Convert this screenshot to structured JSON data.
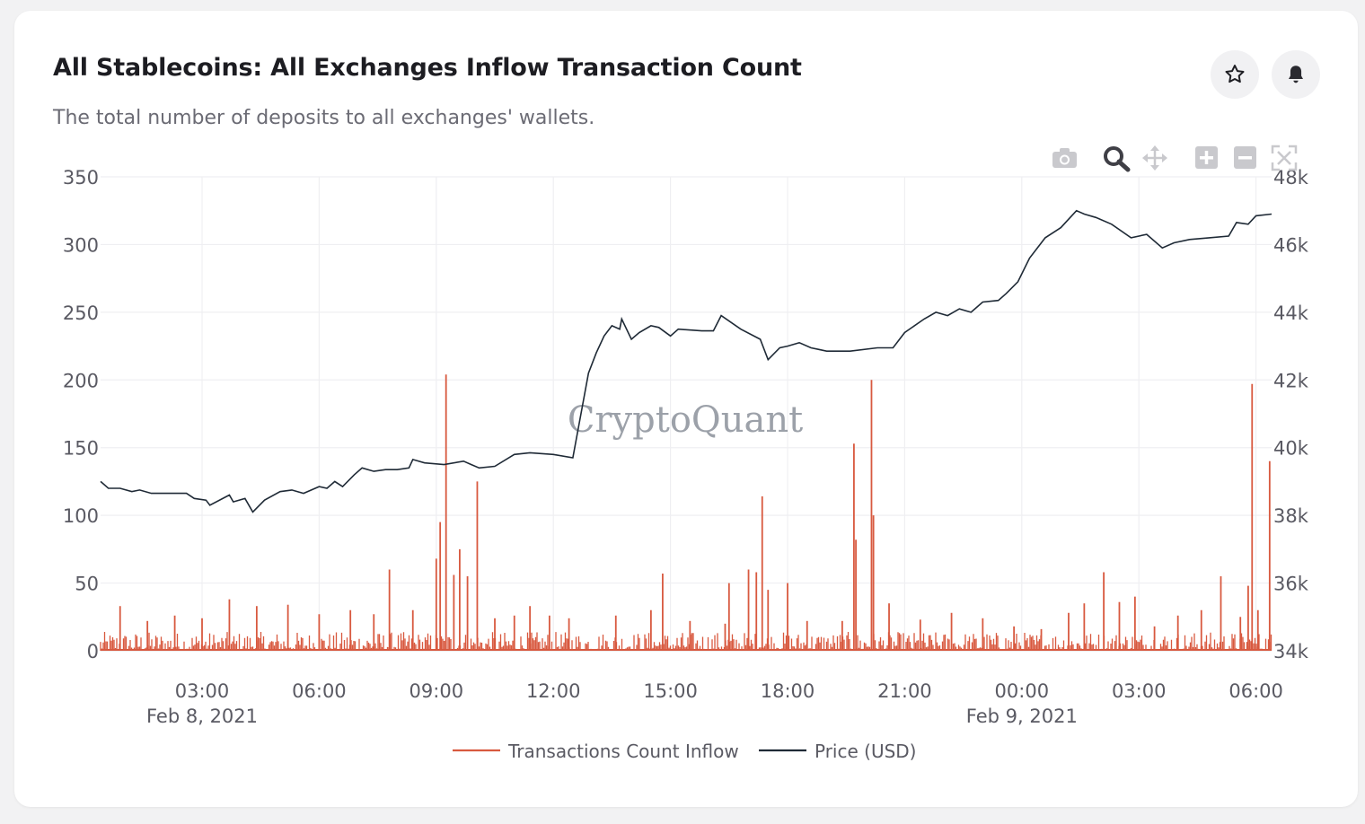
{
  "card": {
    "title": "All Stablecoins: All Exchanges Inflow Transaction Count",
    "subtitle": "The total number of deposits to all exchanges' wallets.",
    "actions": [
      {
        "icon": "star-icon"
      },
      {
        "icon": "bell-icon"
      }
    ]
  },
  "toolbar": {
    "icons": [
      "camera-icon",
      "zoom-icon",
      "pan-icon",
      "zoom-in-icon",
      "zoom-out-icon",
      "autoscale-icon"
    ]
  },
  "watermark": "CryptoQuant",
  "chart_data": {
    "type": "line",
    "x_range_hours": [
      0.4,
      30.4
    ],
    "x_ticks": [
      {
        "h": 3,
        "label": "03:00",
        "sub": "Feb 8, 2021"
      },
      {
        "h": 6,
        "label": "06:00"
      },
      {
        "h": 9,
        "label": "09:00"
      },
      {
        "h": 12,
        "label": "12:00"
      },
      {
        "h": 15,
        "label": "15:00"
      },
      {
        "h": 18,
        "label": "18:00"
      },
      {
        "h": 21,
        "label": "21:00"
      },
      {
        "h": 24,
        "label": "00:00",
        "sub": "Feb 9, 2021"
      },
      {
        "h": 27,
        "label": "03:00"
      },
      {
        "h": 30,
        "label": "06:00"
      }
    ],
    "y_left": {
      "range": [
        0,
        350
      ],
      "ticks": [
        "0",
        "50",
        "100",
        "150",
        "200",
        "250",
        "300",
        "350"
      ]
    },
    "y_right": {
      "range": [
        34000,
        48000
      ],
      "ticks": [
        "34k",
        "36k",
        "38k",
        "40k",
        "42k",
        "44k",
        "46k",
        "48k"
      ]
    },
    "series": [
      {
        "name": "Transactions Count Inflow",
        "color": "#d8593f",
        "axis": "left",
        "baseline_hours": [
          0.4,
          30.4
        ],
        "spikes": [
          [
            0.9,
            33
          ],
          [
            1.6,
            22
          ],
          [
            2.3,
            26
          ],
          [
            3.0,
            24
          ],
          [
            3.7,
            38
          ],
          [
            4.4,
            33
          ],
          [
            5.2,
            34
          ],
          [
            6.0,
            27
          ],
          [
            6.8,
            30
          ],
          [
            7.4,
            27
          ],
          [
            7.8,
            60
          ],
          [
            8.4,
            30
          ],
          [
            9.0,
            68
          ],
          [
            9.1,
            95
          ],
          [
            9.25,
            204
          ],
          [
            9.45,
            56
          ],
          [
            9.6,
            75
          ],
          [
            9.8,
            55
          ],
          [
            10.05,
            125
          ],
          [
            10.5,
            24
          ],
          [
            11.0,
            26
          ],
          [
            11.4,
            33
          ],
          [
            11.9,
            26
          ],
          [
            12.4,
            24
          ],
          [
            13.6,
            26
          ],
          [
            14.5,
            30
          ],
          [
            14.8,
            57
          ],
          [
            15.5,
            22
          ],
          [
            16.4,
            20
          ],
          [
            16.5,
            50
          ],
          [
            17.0,
            60
          ],
          [
            17.2,
            58
          ],
          [
            17.35,
            114
          ],
          [
            17.5,
            45
          ],
          [
            18.0,
            50
          ],
          [
            18.5,
            22
          ],
          [
            19.4,
            22
          ],
          [
            19.7,
            153
          ],
          [
            19.75,
            82
          ],
          [
            20.15,
            200
          ],
          [
            20.2,
            100
          ],
          [
            20.6,
            35
          ],
          [
            21.4,
            23
          ],
          [
            22.2,
            28
          ],
          [
            23.0,
            24
          ],
          [
            23.8,
            18
          ],
          [
            24.5,
            16
          ],
          [
            25.2,
            28
          ],
          [
            25.6,
            35
          ],
          [
            26.1,
            58
          ],
          [
            26.5,
            36
          ],
          [
            26.9,
            40
          ],
          [
            27.4,
            18
          ],
          [
            28.0,
            26
          ],
          [
            28.6,
            30
          ],
          [
            29.1,
            55
          ],
          [
            29.6,
            25
          ],
          [
            29.8,
            48
          ],
          [
            29.9,
            197
          ],
          [
            30.05,
            30
          ],
          [
            30.35,
            140
          ]
        ]
      },
      {
        "name": "Price (USD)",
        "color": "#1f2a36",
        "axis": "right",
        "points": [
          [
            0.4,
            39000
          ],
          [
            0.6,
            38800
          ],
          [
            0.9,
            38800
          ],
          [
            1.2,
            38700
          ],
          [
            1.4,
            38750
          ],
          [
            1.7,
            38650
          ],
          [
            2.0,
            38650
          ],
          [
            2.6,
            38650
          ],
          [
            2.8,
            38500
          ],
          [
            3.1,
            38450
          ],
          [
            3.2,
            38300
          ],
          [
            3.7,
            38600
          ],
          [
            3.8,
            38400
          ],
          [
            4.1,
            38500
          ],
          [
            4.3,
            38100
          ],
          [
            4.6,
            38450
          ],
          [
            5.0,
            38700
          ],
          [
            5.3,
            38750
          ],
          [
            5.6,
            38650
          ],
          [
            6.0,
            38850
          ],
          [
            6.2,
            38800
          ],
          [
            6.4,
            39000
          ],
          [
            6.6,
            38850
          ],
          [
            6.9,
            39200
          ],
          [
            7.1,
            39400
          ],
          [
            7.4,
            39300
          ],
          [
            7.7,
            39350
          ],
          [
            8.0,
            39350
          ],
          [
            8.3,
            39400
          ],
          [
            8.4,
            39650
          ],
          [
            8.7,
            39550
          ],
          [
            9.2,
            39500
          ],
          [
            9.7,
            39600
          ],
          [
            9.9,
            39500
          ],
          [
            10.1,
            39400
          ],
          [
            10.5,
            39450
          ],
          [
            11.0,
            39800
          ],
          [
            11.4,
            39850
          ],
          [
            12.0,
            39800
          ],
          [
            12.5,
            39700
          ],
          [
            12.9,
            42200
          ],
          [
            13.1,
            42800
          ],
          [
            13.3,
            43300
          ],
          [
            13.5,
            43600
          ],
          [
            13.7,
            43500
          ],
          [
            13.75,
            43800
          ],
          [
            14.0,
            43200
          ],
          [
            14.2,
            43400
          ],
          [
            14.5,
            43600
          ],
          [
            14.7,
            43550
          ],
          [
            15.0,
            43300
          ],
          [
            15.2,
            43500
          ],
          [
            15.8,
            43450
          ],
          [
            16.1,
            43450
          ],
          [
            16.3,
            43900
          ],
          [
            16.8,
            43500
          ],
          [
            17.3,
            43200
          ],
          [
            17.5,
            42600
          ],
          [
            17.8,
            42950
          ],
          [
            18.0,
            43000
          ],
          [
            18.3,
            43100
          ],
          [
            18.6,
            42950
          ],
          [
            18.8,
            42900
          ],
          [
            19.0,
            42850
          ],
          [
            19.6,
            42850
          ],
          [
            20.3,
            42950
          ],
          [
            20.7,
            42950
          ],
          [
            21.0,
            43400
          ],
          [
            21.5,
            43800
          ],
          [
            21.8,
            44000
          ],
          [
            22.1,
            43900
          ],
          [
            22.4,
            44100
          ],
          [
            22.7,
            44000
          ],
          [
            23.0,
            44300
          ],
          [
            23.4,
            44350
          ],
          [
            23.6,
            44550
          ],
          [
            23.9,
            44900
          ],
          [
            24.2,
            45600
          ],
          [
            24.6,
            46200
          ],
          [
            25.0,
            46500
          ],
          [
            25.4,
            47000
          ],
          [
            25.6,
            46900
          ],
          [
            25.9,
            46800
          ],
          [
            26.3,
            46600
          ],
          [
            26.8,
            46200
          ],
          [
            27.2,
            46300
          ],
          [
            27.6,
            45900
          ],
          [
            27.9,
            46050
          ],
          [
            28.3,
            46150
          ],
          [
            28.8,
            46200
          ],
          [
            29.3,
            46250
          ],
          [
            29.5,
            46650
          ],
          [
            29.8,
            46600
          ],
          [
            30.0,
            46850
          ],
          [
            30.4,
            46900
          ]
        ]
      }
    ],
    "legend": {
      "placement": "bottom-center"
    }
  }
}
